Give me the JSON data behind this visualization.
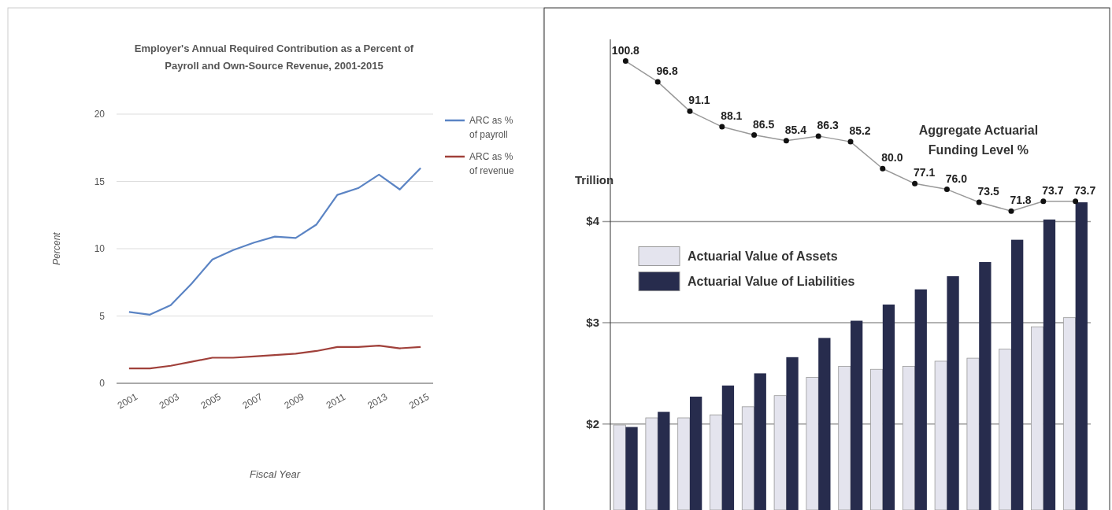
{
  "chart_data": [
    {
      "type": "line",
      "title": "Employer's Annual Required Contribution as a Percent of Payroll and Own-Source Revenue, 2001-2015",
      "xlabel": "Fiscal Year",
      "ylabel": "Percent",
      "x": [
        2001,
        2002,
        2003,
        2004,
        2005,
        2006,
        2007,
        2008,
        2009,
        2010,
        2011,
        2012,
        2013,
        2014,
        2015
      ],
      "xlim": [
        2000.4,
        2015.6
      ],
      "xticks": [
        2001,
        2003,
        2005,
        2007,
        2009,
        2011,
        2013,
        2015
      ],
      "ylim": [
        0,
        20
      ],
      "yticks": [
        0,
        5,
        10,
        15,
        20
      ],
      "grid": "y",
      "legend": "right",
      "series": [
        {
          "name": "ARC as % of payroll",
          "color": "#5b84c4",
          "values": [
            5.3,
            5.1,
            5.8,
            7.4,
            9.2,
            9.9,
            10.45,
            10.9,
            10.8,
            11.8,
            14.0,
            14.5,
            15.5,
            14.4,
            16.0
          ]
        },
        {
          "name": "ARC as % of revenue",
          "color": "#a0403a",
          "values": [
            1.1,
            1.1,
            1.3,
            1.6,
            1.9,
            1.9,
            2.0,
            2.1,
            2.2,
            2.4,
            2.7,
            2.7,
            2.8,
            2.6,
            2.7
          ]
        }
      ]
    },
    {
      "type": "bar",
      "ylabel": "Trillion",
      "categories": [
        null,
        null,
        null,
        null,
        null,
        null,
        null,
        null,
        null,
        null,
        null,
        null,
        null,
        null,
        null
      ],
      "ylim": [
        1.15,
        5.8
      ],
      "yticks": [
        {
          "value": 2,
          "label": "$2"
        },
        {
          "value": 3,
          "label": "$3"
        },
        {
          "value": 4,
          "label": "$4"
        }
      ],
      "y2lim": [
        14,
        105
      ],
      "grid": "y",
      "legend": "top left",
      "tick_labels": "y",
      "marker": "circle",
      "series": [
        {
          "name": "Actuarial Value of Assets",
          "color": "#e4e4ee",
          "values": [
            1.99,
            2.06,
            2.06,
            2.09,
            2.17,
            2.28,
            2.46,
            2.57,
            2.54,
            2.57,
            2.62,
            2.65,
            2.74,
            2.96,
            3.05
          ]
        },
        {
          "name": "Actuarial Value of Liabilities",
          "color": "#272c4d",
          "values": [
            1.97,
            2.12,
            2.27,
            2.38,
            2.5,
            2.66,
            2.85,
            3.02,
            3.18,
            3.33,
            3.46,
            3.6,
            3.82,
            4.02,
            4.19
          ]
        },
        {
          "name": "Aggregate Actuarial Funding Level %",
          "type": "line",
          "axis": "y2",
          "color": "#999999",
          "values": [
            100.8,
            96.8,
            91.1,
            88.1,
            86.5,
            85.4,
            86.3,
            85.2,
            80.0,
            77.1,
            76.0,
            73.5,
            71.8,
            73.7,
            73.7
          ],
          "value_labels": [
            "100.8",
            "96.8",
            "91.1",
            "88.1",
            "86.5",
            "85.4",
            "86.3",
            "85.2",
            "80.0",
            "77.1",
            "76.0",
            "73.5",
            "71.8",
            "73.7",
            "73.7"
          ]
        }
      ]
    }
  ]
}
